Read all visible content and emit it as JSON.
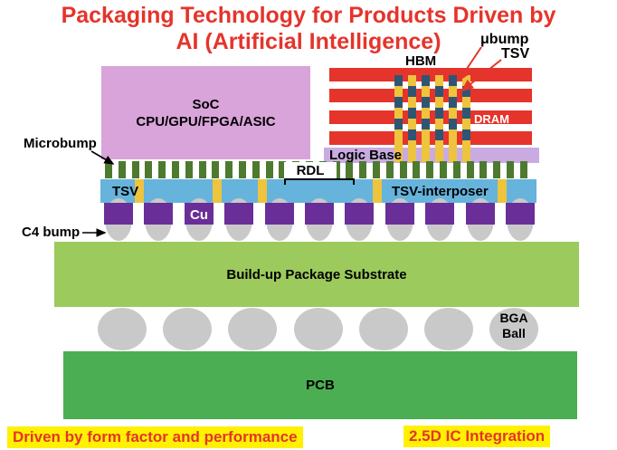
{
  "title": {
    "line1": "Packaging Technology for Products Driven by",
    "line2": "AI (Artificial Intelligence)"
  },
  "labels": {
    "ubump": "μbump",
    "tsv_top": "TSV",
    "hbm": "HBM",
    "dram": "DRAM",
    "soc_line1": "SoC",
    "soc_line2": "CPU/GPU/FPGA/ASIC",
    "microbump": "Microbump",
    "logic_base": "Logic Base",
    "rdl": "RDL",
    "tsv_left": "TSV",
    "tsv_interposer": "TSV-interposer",
    "cu": "Cu",
    "c4_bump": "C4 bump",
    "substrate": "Build-up Package Substrate",
    "bga_line1": "BGA",
    "bga_line2": "Ball",
    "pcb": "PCB"
  },
  "footers": {
    "left": "Driven by form factor and performance",
    "right": "2.5D IC Integration"
  },
  "colors": {
    "red": "#e5342b",
    "plum": "#d9a4da",
    "lavender": "#c9abe1",
    "navy": "#2e5674",
    "gold": "#eec33e",
    "olive": "#4d7a2f",
    "sky": "#66b3dc",
    "purple": "#6a2e98",
    "gray": "#c9c9c9",
    "lgreen": "#9cca5d",
    "green": "#4cae53",
    "highlight": "#fff100"
  }
}
